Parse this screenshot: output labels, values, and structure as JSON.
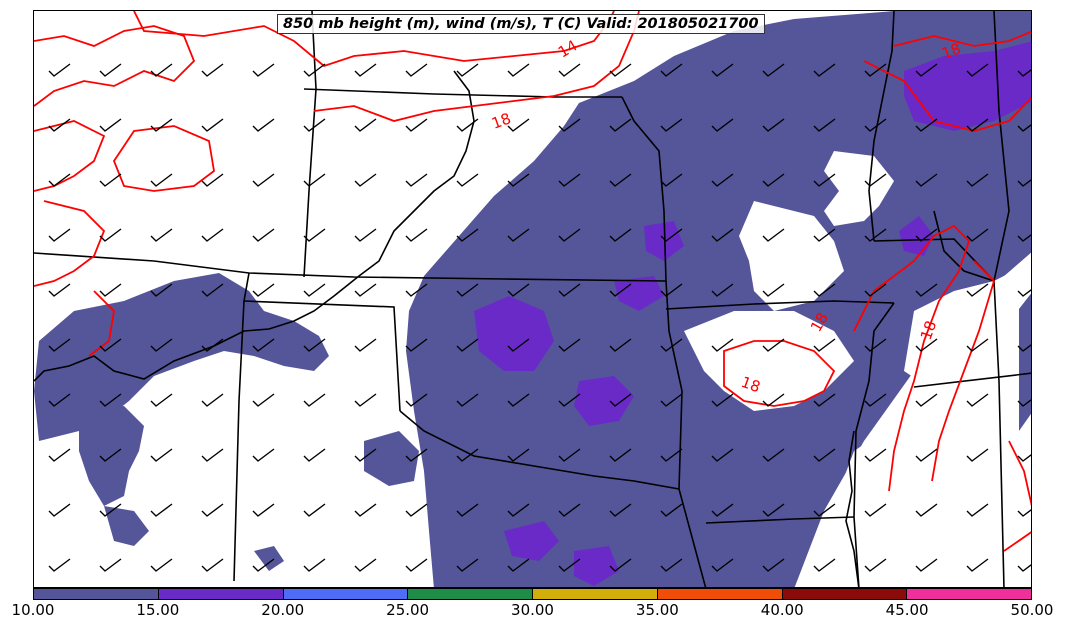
{
  "title": "850 mb height (m), wind (m/s), T (C) Valid: 201805021700",
  "colorbar": {
    "colors": [
      "#55559a",
      "#6a2ac8",
      "#4f6cf6",
      "#1f8c48",
      "#d2ae0a",
      "#f04d08",
      "#8b0a0a",
      "#f0309a"
    ],
    "ticks": [
      "10.00",
      "15.00",
      "20.00",
      "25.00",
      "30.00",
      "35.00",
      "40.00",
      "45.00",
      "50.00"
    ]
  },
  "fill_colors": {
    "wind_10_15": "#55559a",
    "wind_15_20": "#6a2ac8"
  },
  "isotherm_color": "#ff0000",
  "isotherm_labels": [
    "14",
    "18",
    "18",
    "18",
    "18",
    "18"
  ]
}
